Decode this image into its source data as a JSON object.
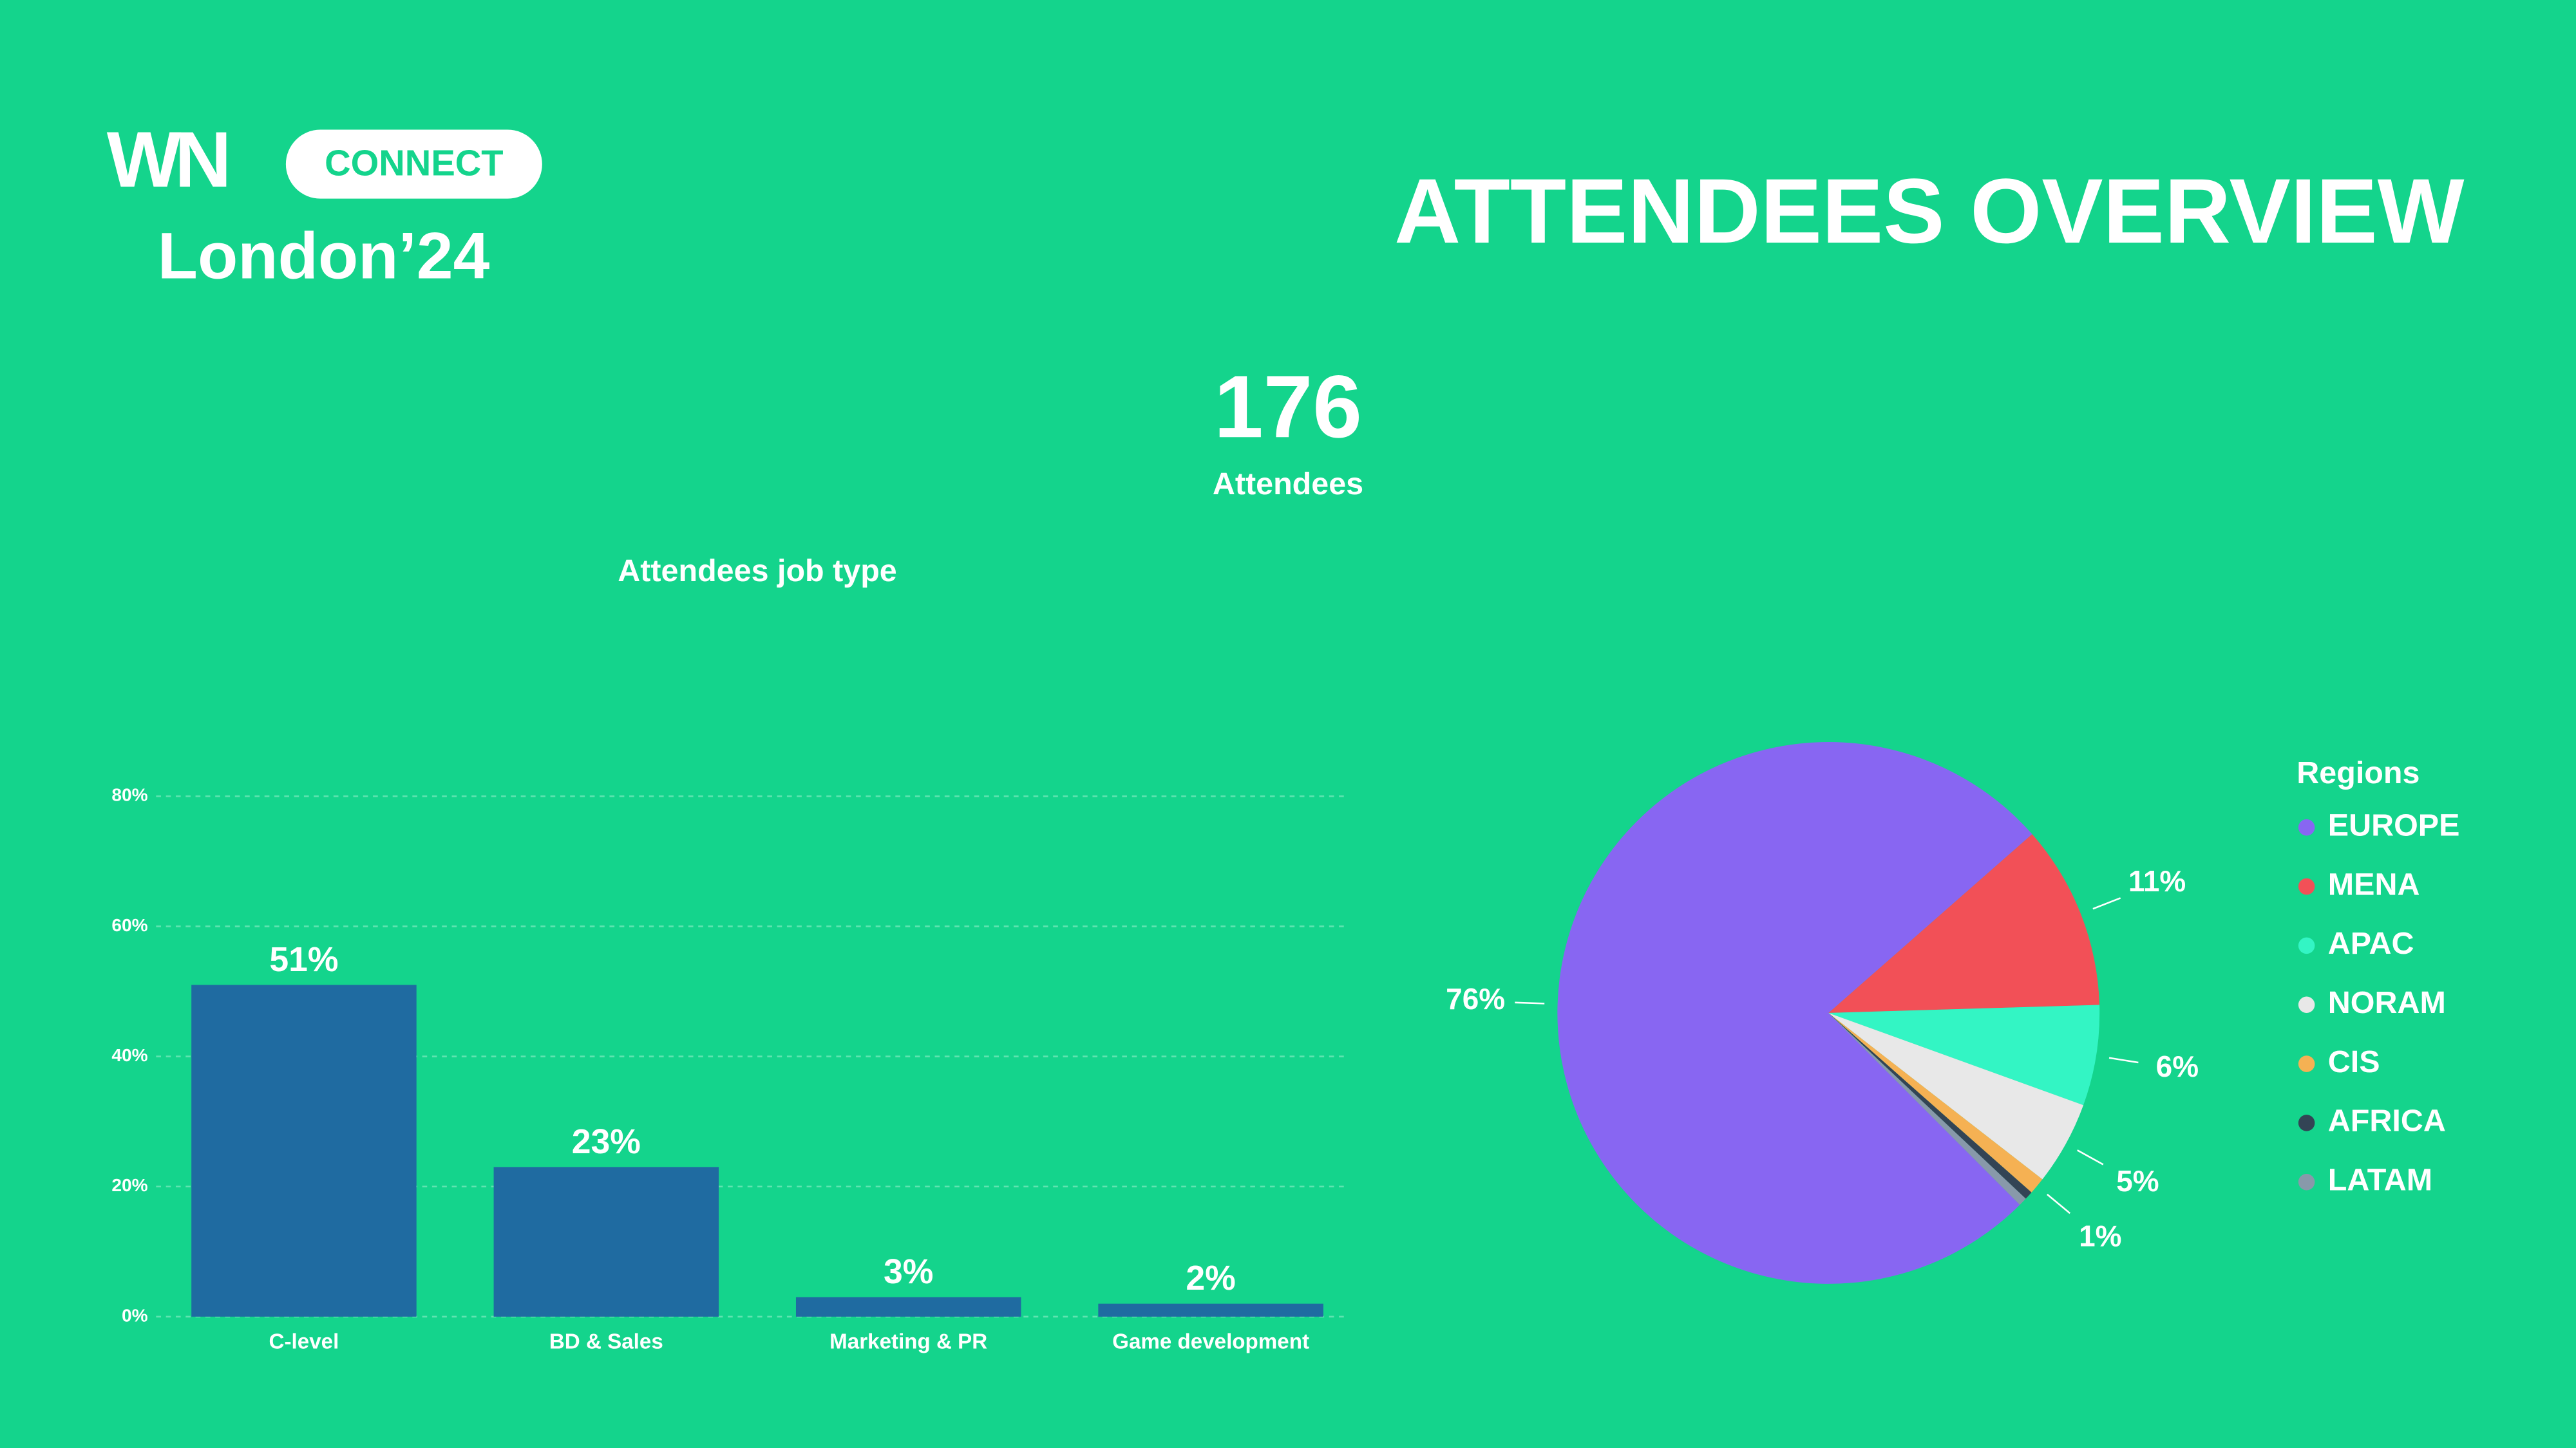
{
  "header": {
    "logo": "WN",
    "badge": "CONNECT",
    "event": "London’24",
    "title": "ATTENDEES OVERVIEW",
    "count": "176",
    "count_label": "Attendees"
  },
  "chart_data": [
    {
      "type": "bar",
      "title": "Attendees job type",
      "categories": [
        "C-level",
        "BD & Sales",
        "Marketing & PR",
        "Game development"
      ],
      "values": [
        51,
        23,
        3,
        2
      ],
      "value_labels": [
        "51%",
        "23%",
        "3%",
        "2%"
      ],
      "color": "#1f6ba1",
      "ylim": [
        0,
        80
      ],
      "yticks": [
        {
          "value": 0,
          "label": "0%"
        },
        {
          "value": 20,
          "label": "20%"
        },
        {
          "value": 40,
          "label": "40%"
        },
        {
          "value": 60,
          "label": "60%"
        },
        {
          "value": 80,
          "label": "80%"
        }
      ],
      "grid": true
    },
    {
      "type": "pie",
      "legend_title": "Regions",
      "categories": [
        "EUROPE",
        "MENA",
        "APAC",
        "NORAM",
        "CIS",
        "AFRICA",
        "LATAM"
      ],
      "values": [
        76,
        11,
        6,
        5,
        1,
        0.5,
        0.5
      ],
      "value_labels": [
        "76%",
        "11%",
        "6%",
        "5%",
        "1%",
        null,
        null
      ],
      "colors": [
        "#8866f2",
        "#f25057",
        "#33f5c4",
        "#e8e8e8",
        "#f5b153",
        "#334455",
        "#8899aa"
      ],
      "legend": "right"
    }
  ]
}
